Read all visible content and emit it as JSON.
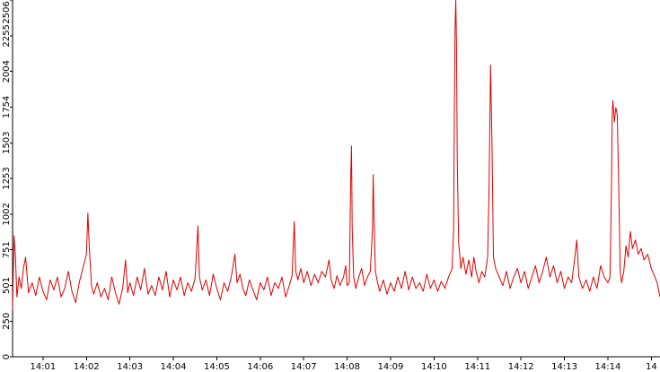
{
  "chart_data": {
    "type": "line",
    "title": "",
    "xlabel": "",
    "ylabel": "",
    "ylim": [
      0,
      2506
    ],
    "y_ticks": [
      0,
      250,
      501,
      751,
      1002,
      1253,
      1503,
      1754,
      2004,
      2255,
      2506
    ],
    "x_ticks": [
      "14:01",
      "14:02",
      "14:03",
      "14:04",
      "14:05",
      "14:06",
      "14:07",
      "14:08",
      "14:09",
      "14:10",
      "14:11",
      "14:12",
      "14:13",
      "14:14",
      "14"
    ],
    "x_range": [
      "14:00:18",
      "14:15:12"
    ],
    "grid": false,
    "legend": "none",
    "colors": {
      "series": "#dd0000",
      "axis": "#000000",
      "background": "#ffffff"
    },
    "series": [
      {
        "points": [
          [
            "14:00:18",
            330
          ],
          [
            "14:00:20",
            850
          ],
          [
            "14:00:22",
            700
          ],
          [
            "14:00:24",
            420
          ],
          [
            "14:00:27",
            560
          ],
          [
            "14:00:30",
            480
          ],
          [
            "14:00:33",
            620
          ],
          [
            "14:00:36",
            700
          ],
          [
            "14:00:40",
            450
          ],
          [
            "14:00:45",
            520
          ],
          [
            "14:00:50",
            430
          ],
          [
            "14:00:55",
            560
          ],
          [
            "14:01:00",
            460
          ],
          [
            "14:01:05",
            400
          ],
          [
            "14:01:10",
            540
          ],
          [
            "14:01:15",
            470
          ],
          [
            "14:01:20",
            560
          ],
          [
            "14:01:25",
            420
          ],
          [
            "14:01:30",
            480
          ],
          [
            "14:01:35",
            600
          ],
          [
            "14:01:40",
            460
          ],
          [
            "14:01:45",
            380
          ],
          [
            "14:01:50",
            520
          ],
          [
            "14:01:55",
            620
          ],
          [
            "14:02:00",
            720
          ],
          [
            "14:02:02",
            1010
          ],
          [
            "14:02:04",
            760
          ],
          [
            "14:02:07",
            500
          ],
          [
            "14:02:10",
            440
          ],
          [
            "14:02:15",
            520
          ],
          [
            "14:02:20",
            420
          ],
          [
            "14:02:25",
            480
          ],
          [
            "14:02:30",
            400
          ],
          [
            "14:02:35",
            560
          ],
          [
            "14:02:40",
            450
          ],
          [
            "14:02:45",
            370
          ],
          [
            "14:02:50",
            480
          ],
          [
            "14:02:54",
            680
          ],
          [
            "14:02:57",
            450
          ],
          [
            "14:03:00",
            520
          ],
          [
            "14:03:05",
            430
          ],
          [
            "14:03:10",
            560
          ],
          [
            "14:03:15",
            470
          ],
          [
            "14:03:20",
            620
          ],
          [
            "14:03:25",
            440
          ],
          [
            "14:03:30",
            500
          ],
          [
            "14:03:35",
            430
          ],
          [
            "14:03:40",
            560
          ],
          [
            "14:03:45",
            470
          ],
          [
            "14:03:50",
            600
          ],
          [
            "14:03:55",
            420
          ],
          [
            "14:04:00",
            540
          ],
          [
            "14:04:05",
            470
          ],
          [
            "14:04:10",
            560
          ],
          [
            "14:04:15",
            430
          ],
          [
            "14:04:20",
            520
          ],
          [
            "14:04:25",
            460
          ],
          [
            "14:04:30",
            550
          ],
          [
            "14:04:34",
            920
          ],
          [
            "14:04:36",
            560
          ],
          [
            "14:04:40",
            470
          ],
          [
            "14:04:45",
            540
          ],
          [
            "14:04:50",
            430
          ],
          [
            "14:04:55",
            580
          ],
          [
            "14:05:00",
            480
          ],
          [
            "14:05:05",
            400
          ],
          [
            "14:05:10",
            520
          ],
          [
            "14:05:15",
            460
          ],
          [
            "14:05:20",
            560
          ],
          [
            "14:05:25",
            720
          ],
          [
            "14:05:28",
            520
          ],
          [
            "14:05:32",
            580
          ],
          [
            "14:05:36",
            480
          ],
          [
            "14:05:40",
            430
          ],
          [
            "14:05:45",
            540
          ],
          [
            "14:05:50",
            470
          ],
          [
            "14:05:55",
            400
          ],
          [
            "14:06:00",
            520
          ],
          [
            "14:06:05",
            470
          ],
          [
            "14:06:10",
            560
          ],
          [
            "14:06:15",
            430
          ],
          [
            "14:06:20",
            520
          ],
          [
            "14:06:25",
            480
          ],
          [
            "14:06:30",
            560
          ],
          [
            "14:06:35",
            420
          ],
          [
            "14:06:40",
            500
          ],
          [
            "14:06:44",
            570
          ],
          [
            "14:06:47",
            950
          ],
          [
            "14:06:49",
            600
          ],
          [
            "14:06:52",
            540
          ],
          [
            "14:06:56",
            620
          ],
          [
            "14:07:00",
            520
          ],
          [
            "14:07:05",
            600
          ],
          [
            "14:07:10",
            500
          ],
          [
            "14:07:15",
            580
          ],
          [
            "14:07:20",
            520
          ],
          [
            "14:07:25",
            600
          ],
          [
            "14:07:30",
            560
          ],
          [
            "14:07:35",
            680
          ],
          [
            "14:07:38",
            540
          ],
          [
            "14:07:42",
            480
          ],
          [
            "14:07:46",
            570
          ],
          [
            "14:07:50",
            500
          ],
          [
            "14:07:55",
            560
          ],
          [
            "14:07:58",
            640
          ],
          [
            "14:08:00",
            500
          ],
          [
            "14:08:03",
            520
          ],
          [
            "14:08:05",
            1280
          ],
          [
            "14:08:06",
            1480
          ],
          [
            "14:08:07",
            900
          ],
          [
            "14:08:09",
            560
          ],
          [
            "14:08:12",
            480
          ],
          [
            "14:08:16",
            560
          ],
          [
            "14:08:20",
            620
          ],
          [
            "14:08:24",
            500
          ],
          [
            "14:08:28",
            560
          ],
          [
            "14:08:32",
            600
          ],
          [
            "14:08:35",
            900
          ],
          [
            "14:08:36",
            1280
          ],
          [
            "14:08:37",
            1000
          ],
          [
            "14:08:39",
            600
          ],
          [
            "14:08:42",
            520
          ],
          [
            "14:08:45",
            460
          ],
          [
            "14:08:50",
            540
          ],
          [
            "14:08:55",
            440
          ],
          [
            "14:09:00",
            520
          ],
          [
            "14:09:05",
            460
          ],
          [
            "14:09:10",
            560
          ],
          [
            "14:09:15",
            480
          ],
          [
            "14:09:20",
            600
          ],
          [
            "14:09:25",
            470
          ],
          [
            "14:09:30",
            560
          ],
          [
            "14:09:35",
            480
          ],
          [
            "14:09:40",
            520
          ],
          [
            "14:09:45",
            460
          ],
          [
            "14:09:50",
            580
          ],
          [
            "14:09:55",
            480
          ],
          [
            "14:10:00",
            540
          ],
          [
            "14:10:05",
            460
          ],
          [
            "14:10:10",
            530
          ],
          [
            "14:10:15",
            480
          ],
          [
            "14:10:20",
            560
          ],
          [
            "14:10:25",
            620
          ],
          [
            "14:10:27",
            900
          ],
          [
            "14:10:28",
            1700
          ],
          [
            "14:10:29",
            2300
          ],
          [
            "14:10:30",
            2506
          ],
          [
            "14:10:31",
            2200
          ],
          [
            "14:10:32",
            1400
          ],
          [
            "14:10:34",
            800
          ],
          [
            "14:10:37",
            620
          ],
          [
            "14:10:40",
            700
          ],
          [
            "14:10:44",
            580
          ],
          [
            "14:10:48",
            680
          ],
          [
            "14:10:52",
            560
          ],
          [
            "14:10:55",
            700
          ],
          [
            "14:10:58",
            600
          ],
          [
            "14:11:02",
            520
          ],
          [
            "14:11:06",
            600
          ],
          [
            "14:11:10",
            560
          ],
          [
            "14:11:14",
            700
          ],
          [
            "14:11:16",
            1200
          ],
          [
            "14:11:18",
            2050
          ],
          [
            "14:11:20",
            1500
          ],
          [
            "14:11:22",
            700
          ],
          [
            "14:11:25",
            620
          ],
          [
            "14:11:30",
            560
          ],
          [
            "14:11:35",
            500
          ],
          [
            "14:11:40",
            600
          ],
          [
            "14:11:45",
            480
          ],
          [
            "14:11:50",
            560
          ],
          [
            "14:11:55",
            620
          ],
          [
            "14:12:00",
            520
          ],
          [
            "14:12:05",
            600
          ],
          [
            "14:12:10",
            480
          ],
          [
            "14:12:15",
            560
          ],
          [
            "14:12:20",
            640
          ],
          [
            "14:12:25",
            520
          ],
          [
            "14:12:30",
            600
          ],
          [
            "14:12:35",
            700
          ],
          [
            "14:12:40",
            560
          ],
          [
            "14:12:45",
            640
          ],
          [
            "14:12:50",
            520
          ],
          [
            "14:12:55",
            600
          ],
          [
            "14:13:00",
            480
          ],
          [
            "14:13:05",
            560
          ],
          [
            "14:13:10",
            520
          ],
          [
            "14:13:14",
            680
          ],
          [
            "14:13:17",
            820
          ],
          [
            "14:13:20",
            560
          ],
          [
            "14:13:25",
            480
          ],
          [
            "14:13:30",
            540
          ],
          [
            "14:13:35",
            460
          ],
          [
            "14:13:40",
            560
          ],
          [
            "14:13:45",
            480
          ],
          [
            "14:13:50",
            640
          ],
          [
            "14:13:55",
            560
          ],
          [
            "14:14:00",
            520
          ],
          [
            "14:14:03",
            560
          ],
          [
            "14:14:05",
            1200
          ],
          [
            "14:14:06",
            1700
          ],
          [
            "14:14:07",
            1800
          ],
          [
            "14:14:09",
            1650
          ],
          [
            "14:14:11",
            1750
          ],
          [
            "14:14:13",
            1700
          ],
          [
            "14:14:15",
            1200
          ],
          [
            "14:14:17",
            600
          ],
          [
            "14:14:19",
            520
          ],
          [
            "14:14:22",
            600
          ],
          [
            "14:14:25",
            780
          ],
          [
            "14:14:28",
            700
          ],
          [
            "14:14:31",
            880
          ],
          [
            "14:14:34",
            760
          ],
          [
            "14:14:38",
            820
          ],
          [
            "14:14:42",
            720
          ],
          [
            "14:14:46",
            760
          ],
          [
            "14:14:50",
            680
          ],
          [
            "14:14:55",
            720
          ],
          [
            "14:15:00",
            620
          ],
          [
            "14:15:05",
            560
          ],
          [
            "14:15:08",
            520
          ],
          [
            "14:15:12",
            420
          ]
        ]
      }
    ]
  }
}
